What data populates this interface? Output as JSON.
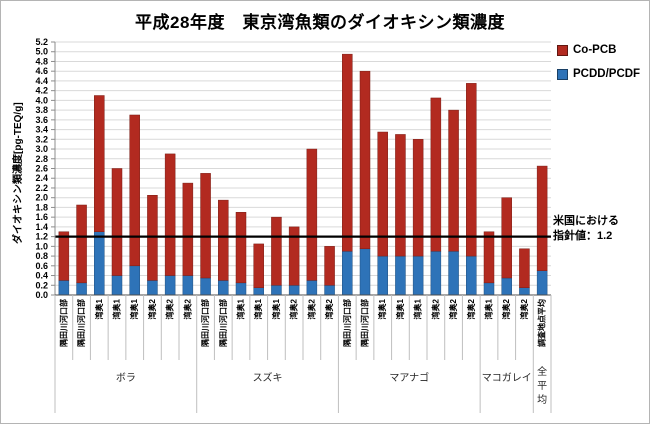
{
  "chart_data": {
    "type": "bar",
    "stacked": true,
    "title": "平成28年度　東京湾魚類のダイオキシン類濃度",
    "xlabel": "",
    "ylabel": "ダイオキシン類濃度[pg-TEQ/g]",
    "ylim": [
      0.0,
      5.2
    ],
    "ytick_step": 0.2,
    "grid": true,
    "legend_position": "right-top",
    "legend": [
      {
        "label": "Co-PCB",
        "color": "#b22a20"
      },
      {
        "label": "PCDD/PCDF",
        "color": "#2e73b8"
      }
    ],
    "reference_line": {
      "value": 1.2,
      "label_line1": "米国における",
      "label_line2": "指針値：1.2"
    },
    "series_order_bottom_to_top": [
      "PCDD/PCDF",
      "Co-PCB"
    ],
    "groups": [
      {
        "name": "ボラ",
        "bars": [
          {
            "site": "隅田川河口部",
            "pcdd_pcdf": 0.3,
            "co_pcb": 1.0
          },
          {
            "site": "隅田川河口部",
            "pcdd_pcdf": 0.25,
            "co_pcb": 1.6
          },
          {
            "site": "湾奥1",
            "pcdd_pcdf": 1.3,
            "co_pcb": 2.8
          },
          {
            "site": "湾奥1",
            "pcdd_pcdf": 0.4,
            "co_pcb": 2.2
          },
          {
            "site": "湾奥1",
            "pcdd_pcdf": 0.6,
            "co_pcb": 3.1
          },
          {
            "site": "湾奥2",
            "pcdd_pcdf": 0.3,
            "co_pcb": 1.75
          },
          {
            "site": "湾奥2",
            "pcdd_pcdf": 0.4,
            "co_pcb": 2.5
          },
          {
            "site": "湾奥2",
            "pcdd_pcdf": 0.4,
            "co_pcb": 1.9
          }
        ]
      },
      {
        "name": "スズキ",
        "bars": [
          {
            "site": "隅田川河口部",
            "pcdd_pcdf": 0.35,
            "co_pcb": 2.15
          },
          {
            "site": "隅田川河口部",
            "pcdd_pcdf": 0.3,
            "co_pcb": 1.65
          },
          {
            "site": "湾奥1",
            "pcdd_pcdf": 0.25,
            "co_pcb": 1.45
          },
          {
            "site": "湾奥1",
            "pcdd_pcdf": 0.15,
            "co_pcb": 0.9
          },
          {
            "site": "湾奥1",
            "pcdd_pcdf": 0.2,
            "co_pcb": 1.4
          },
          {
            "site": "湾奥2",
            "pcdd_pcdf": 0.2,
            "co_pcb": 1.2
          },
          {
            "site": "湾奥2",
            "pcdd_pcdf": 0.3,
            "co_pcb": 2.7
          },
          {
            "site": "湾奥2",
            "pcdd_pcdf": 0.2,
            "co_pcb": 0.8
          }
        ]
      },
      {
        "name": "マアナゴ",
        "bars": [
          {
            "site": "隅田川河口部",
            "pcdd_pcdf": 0.9,
            "co_pcb": 4.05
          },
          {
            "site": "隅田川河口部",
            "pcdd_pcdf": 0.95,
            "co_pcb": 3.65
          },
          {
            "site": "湾奥1",
            "pcdd_pcdf": 0.8,
            "co_pcb": 2.55
          },
          {
            "site": "湾奥1",
            "pcdd_pcdf": 0.8,
            "co_pcb": 2.5
          },
          {
            "site": "湾奥1",
            "pcdd_pcdf": 0.8,
            "co_pcb": 2.4
          },
          {
            "site": "湾奥2",
            "pcdd_pcdf": 0.9,
            "co_pcb": 3.15
          },
          {
            "site": "湾奥2",
            "pcdd_pcdf": 0.9,
            "co_pcb": 2.9
          },
          {
            "site": "湾奥2",
            "pcdd_pcdf": 0.8,
            "co_pcb": 3.55
          }
        ]
      },
      {
        "name": "マコガレイ",
        "bars": [
          {
            "site": "湾奥1",
            "pcdd_pcdf": 0.25,
            "co_pcb": 1.05
          },
          {
            "site": "湾奥2",
            "pcdd_pcdf": 0.35,
            "co_pcb": 1.65
          },
          {
            "site": "湾奥2",
            "pcdd_pcdf": 0.15,
            "co_pcb": 0.8
          }
        ]
      },
      {
        "name": "全平均",
        "name_orientation": "vertical",
        "bars": [
          {
            "site": "調査地点平均",
            "pcdd_pcdf": 0.5,
            "co_pcb": 2.15
          }
        ]
      }
    ],
    "colors": {
      "co_pcb": "#b22a20",
      "pcdd_pcdf": "#2e73b8",
      "reference_line": "#000000",
      "gridline": "#d9d9d9",
      "axis": "#8c8c8c"
    }
  }
}
